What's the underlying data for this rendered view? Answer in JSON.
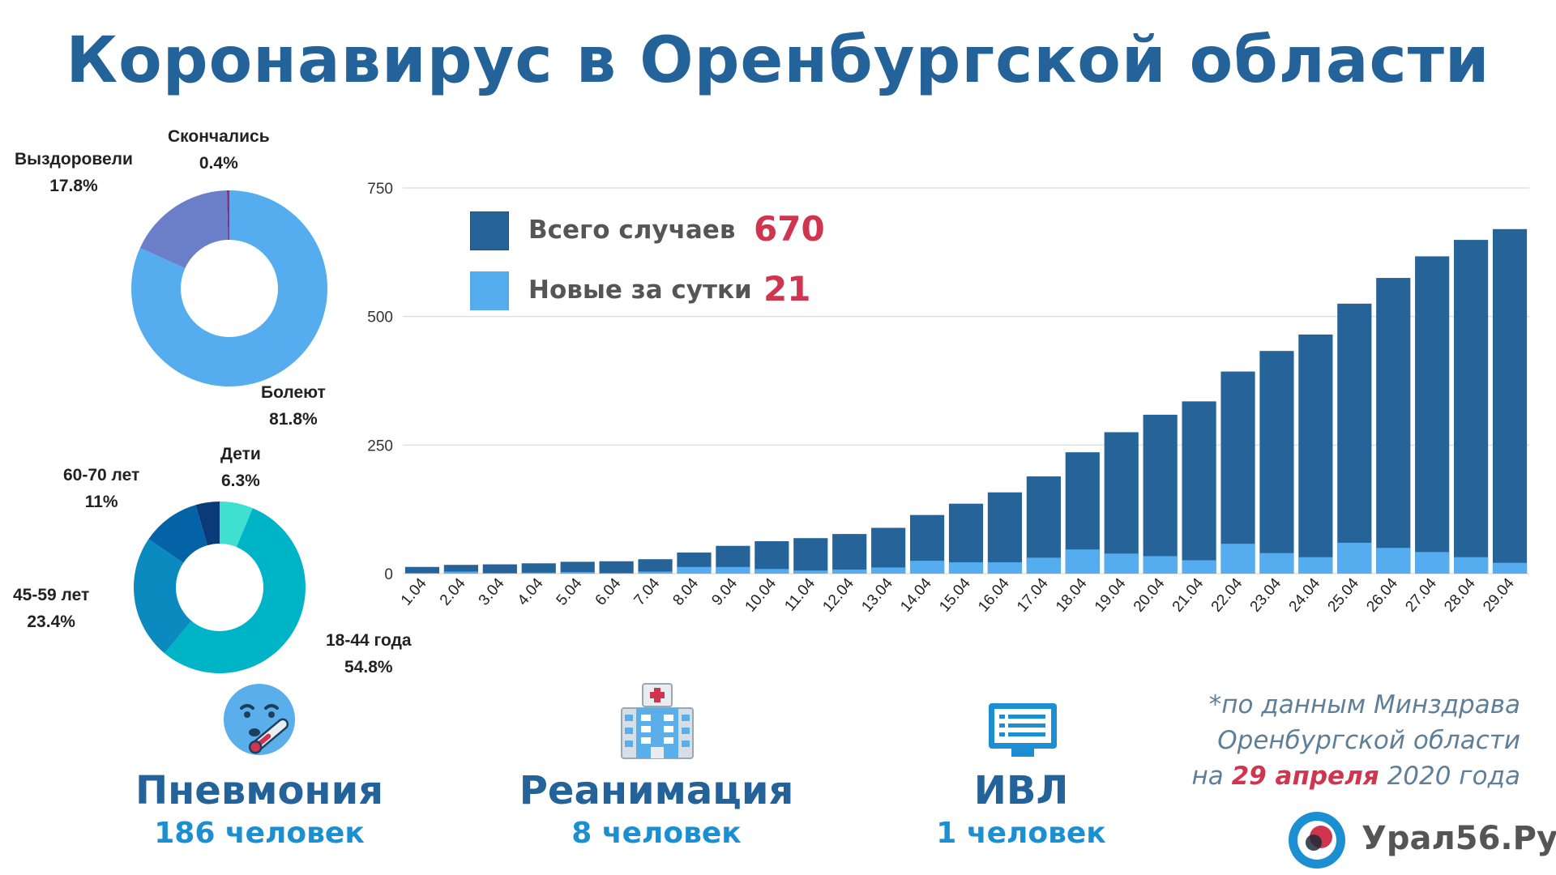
{
  "title": "Коронавирус в Оренбургской области",
  "colors": {
    "title": "#24629a",
    "total_bar": "#256398",
    "new_bar": "#55acee",
    "value_accent": "#d1344e",
    "stat_value": "#1b8fd1",
    "gridline": "#e0e0e0"
  },
  "chart_data": [
    {
      "type": "pie",
      "subtype": "donut",
      "labels": [
        "Болеют",
        "Выздоровели",
        "Скончались"
      ],
      "values": [
        81.8,
        17.8,
        0.4
      ],
      "display": [
        "81.8%",
        "17.8%",
        "0.4%"
      ],
      "colors": [
        "#55acee",
        "#6a7fc7",
        "#6a3d8f"
      ]
    },
    {
      "type": "pie",
      "subtype": "donut",
      "labels": [
        "Дети",
        "18-44 года",
        "45-59 лет",
        "60-70 лет"
      ],
      "values": [
        6.3,
        54.8,
        23.4,
        11
      ],
      "display": [
        "6.3%",
        "54.8%",
        "23.4%",
        "11%"
      ],
      "colors": [
        "#3fe0d0",
        "#00b4c8",
        "#0a8abf",
        "#0463a6"
      ],
      "unlabeled_remainder_color": "#0b3a78"
    },
    {
      "type": "bar",
      "overlay": true,
      "categories": [
        "1.04",
        "2.04",
        "3.04",
        "4.04",
        "5.04",
        "6.04",
        "7.04",
        "8.04",
        "9.04",
        "10.04",
        "11.04",
        "12.04",
        "13.04",
        "14.04",
        "15.04",
        "16.04",
        "17.04",
        "18.04",
        "19.04",
        "20.04",
        "21.04",
        "22.04",
        "23.04",
        "24.04",
        "25.04",
        "26.04",
        "27.04",
        "28.04",
        "29.04"
      ],
      "series": [
        {
          "name": "Всего случаев",
          "values": [
            13,
            17,
            18,
            20,
            23,
            24,
            28,
            41,
            54,
            63,
            69,
            77,
            89,
            114,
            136,
            158,
            189,
            236,
            275,
            309,
            335,
            393,
            433,
            465,
            525,
            575,
            617,
            649,
            670
          ]
        },
        {
          "name": "Новые за сутки",
          "values": [
            1,
            4,
            1,
            2,
            3,
            1,
            4,
            13,
            13,
            9,
            6,
            8,
            12,
            25,
            22,
            22,
            31,
            47,
            39,
            34,
            26,
            58,
            40,
            32,
            60,
            50,
            42,
            32,
            21
          ]
        }
      ],
      "ylim": [
        0,
        750
      ],
      "yticks": [
        0,
        250,
        500,
        750
      ],
      "grid": true,
      "legend_position": "top-left"
    }
  ],
  "legend": {
    "total_label": "Всего случаев",
    "total_value": "670",
    "new_label": "Новые за сутки",
    "new_value": "21"
  },
  "stats": [
    {
      "title": "Пневмония",
      "value": "186 человек",
      "icon": "sick-face-thermometer-icon"
    },
    {
      "title": "Реанимация",
      "value": "8 человек",
      "icon": "hospital-icon"
    },
    {
      "title": "ИВЛ",
      "value": "1 человек",
      "icon": "monitor-icon"
    }
  ],
  "source": {
    "line1": "*по данным Минздрава",
    "line2": "Оренбургской области",
    "line3_prefix": "на",
    "line3_date": "29 апреля",
    "line3_suffix": "2020 года"
  },
  "brand": {
    "name": "Урал56.Ру",
    "logo_icon": "ural56-logo-icon"
  }
}
